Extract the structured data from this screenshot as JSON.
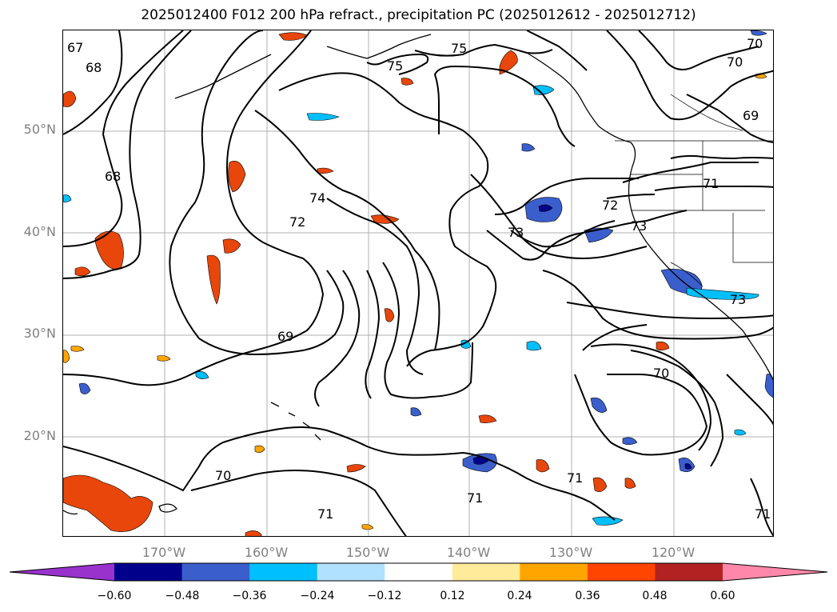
{
  "title": "2025012400 F012 200 hPa refract., precipitation PC (2025012612 - 2025012712)",
  "lat_labels": [
    "50°N",
    "40°N",
    "30°N",
    "20°N"
  ],
  "lon_labels": [
    "170°W",
    "160°W",
    "150°W",
    "140°W",
    "130°W",
    "120°W"
  ],
  "contour_labels": [
    "67",
    "68",
    "75",
    "75",
    "70",
    "70",
    "69",
    "68",
    "74",
    "72",
    "72",
    "71",
    "73",
    "73",
    "73",
    "69",
    "70",
    "70",
    "71",
    "71",
    "71",
    "71"
  ],
  "colorbar": {
    "tick_labels": [
      "−0.60",
      "−0.48",
      "−0.36",
      "−0.24",
      "−0.12",
      "0.12",
      "0.24",
      "0.36",
      "0.48",
      "0.60"
    ],
    "colors": [
      "#9932cc",
      "#00008b",
      "#3a5fcd",
      "#00bfff",
      "#b0e2ff",
      "#ffffff",
      "#ffeb99",
      "#ffa500",
      "#ff4500",
      "#b22222",
      "#ff88aa"
    ]
  },
  "fill_colors": {
    "red": "#e8460a",
    "orange": "#ffa500",
    "yellow": "#ffeb99",
    "navy": "#00008b",
    "blue": "#3a5fcd",
    "cyan": "#00bfff",
    "lightblue": "#b0e2ff"
  }
}
